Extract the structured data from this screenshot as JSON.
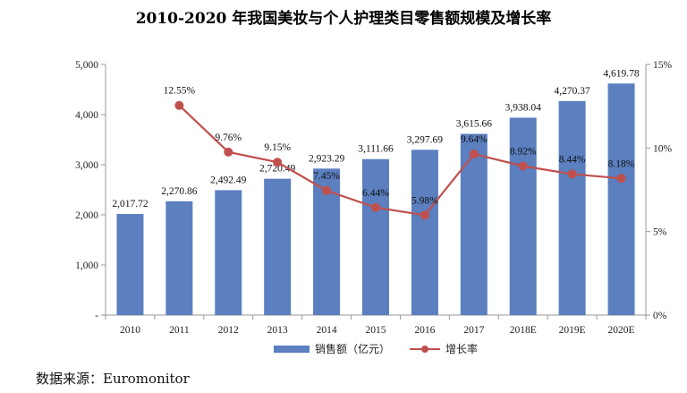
{
  "chart_data": {
    "type": "bar",
    "title": "2010-2020 年我国美妆与个人护理类目零售额规模及增长率",
    "categories": [
      "2010",
      "2011",
      "2012",
      "2013",
      "2014",
      "2015",
      "2016",
      "2017",
      "2018E",
      "2019E",
      "2020E"
    ],
    "series": [
      {
        "name": "销售额（亿元）",
        "type": "bar",
        "axis": "left",
        "color": "#5b7fbf",
        "values": [
          2017.72,
          2270.86,
          2492.49,
          2720.49,
          2923.29,
          3111.66,
          3297.69,
          3615.66,
          3938.04,
          4270.37,
          4619.78
        ],
        "labels": [
          "2,017.72",
          "2,270.86",
          "2,492.49",
          "2,720.49",
          "2,923.29",
          "3,111.66",
          "3,297.69",
          "3,615.66",
          "3,938.04",
          "4,270.37",
          "4,619.78"
        ]
      },
      {
        "name": "增长率",
        "type": "line",
        "axis": "right",
        "color": "#c0504d",
        "values": [
          null,
          12.55,
          9.76,
          9.15,
          7.45,
          6.44,
          5.98,
          9.64,
          8.92,
          8.44,
          8.18
        ],
        "labels": [
          "",
          "12.55%",
          "9.76%",
          "9.15%",
          "7.45%",
          "6.44%",
          "5.98%",
          "9.64%",
          "8.92%",
          "8.44%",
          "8.18%"
        ]
      }
    ],
    "y_left": {
      "ylim": [
        0,
        5000
      ],
      "ticks": [
        0,
        1000,
        2000,
        3000,
        4000,
        5000
      ],
      "tick_labels": [
        "-",
        "1,000",
        "2,000",
        "3,000",
        "4,000",
        "5,000"
      ]
    },
    "y_right": {
      "ylim": [
        0,
        15
      ],
      "ticks": [
        0,
        5,
        10,
        15
      ],
      "tick_labels": [
        "0%",
        "5%",
        "10%",
        "15%"
      ]
    },
    "grid": false,
    "legend": {
      "position": "bottom",
      "entries": [
        "销售额（亿元）",
        "增长率"
      ]
    }
  },
  "source_note": "数据来源：Euromonitor"
}
